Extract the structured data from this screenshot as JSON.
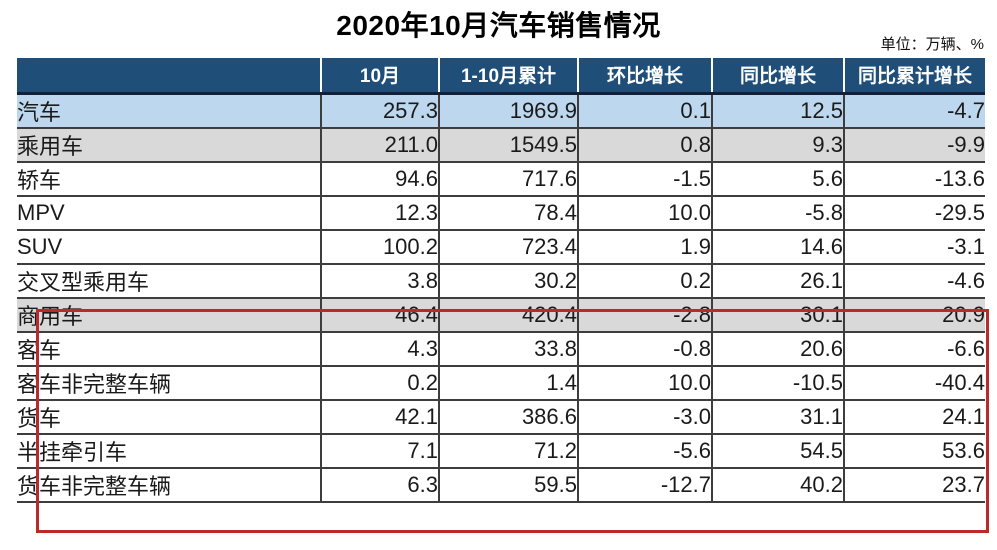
{
  "title": "2020年10月汽车销售情况",
  "unit_note": "单位：万辆、%",
  "chart_data": {
    "type": "table",
    "title": "2020年10月汽车销售情况",
    "unit": "万辆、%",
    "columns": [
      "",
      "10月",
      "1-10月累计",
      "环比增长",
      "同比增长",
      "同比累计增长"
    ],
    "rows": [
      {
        "label": "汽车",
        "indent": 0,
        "highlight": "blue",
        "values": [
          "257.3",
          "1969.9",
          "0.1",
          "12.5",
          "-4.7"
        ]
      },
      {
        "label": "乘用车",
        "indent": 1,
        "highlight": "gray",
        "values": [
          "211.0",
          "1549.5",
          "0.8",
          "9.3",
          "-9.9"
        ]
      },
      {
        "label": "轿车",
        "indent": 2,
        "highlight": "none",
        "values": [
          "94.6",
          "717.6",
          "-1.5",
          "5.6",
          "-13.6"
        ]
      },
      {
        "label": "MPV",
        "indent": 2,
        "highlight": "none",
        "values": [
          "12.3",
          "78.4",
          "10.0",
          "-5.8",
          "-29.5"
        ]
      },
      {
        "label": "SUV",
        "indent": 2,
        "highlight": "none",
        "values": [
          "100.2",
          "723.4",
          "1.9",
          "14.6",
          "-3.1"
        ]
      },
      {
        "label": "交叉型乘用车",
        "indent": 2,
        "highlight": "none",
        "values": [
          "3.8",
          "30.2",
          "0.2",
          "26.1",
          "-4.6"
        ]
      },
      {
        "label": "商用车",
        "indent": 1,
        "highlight": "gray",
        "values": [
          "46.4",
          "420.4",
          "-2.8",
          "30.1",
          "20.9"
        ]
      },
      {
        "label": "客车",
        "indent": 2,
        "highlight": "none",
        "values": [
          "4.3",
          "33.8",
          "-0.8",
          "20.6",
          "-6.6"
        ]
      },
      {
        "label": "客车非完整车辆",
        "indent": 3,
        "highlight": "none",
        "values": [
          "0.2",
          "1.4",
          "10.0",
          "-10.5",
          "-40.4"
        ]
      },
      {
        "label": "货车",
        "indent": 2,
        "highlight": "none",
        "values": [
          "42.1",
          "386.6",
          "-3.0",
          "31.1",
          "24.1"
        ]
      },
      {
        "label": "半挂牵引车",
        "indent": 3,
        "highlight": "none",
        "values": [
          "7.1",
          "71.2",
          "-5.6",
          "54.5",
          "53.6"
        ]
      },
      {
        "label": "货车非完整车辆",
        "indent": 3,
        "highlight": "none",
        "values": [
          "6.3",
          "59.5",
          "-12.7",
          "40.2",
          "23.7"
        ]
      }
    ],
    "annotation": "红色方框圈出商用车部分（商用车至货车非完整车辆共6行）"
  },
  "colors": {
    "header_bg": "#1f4e79",
    "header_text": "#ffffff",
    "row_highlight_blue": "#bdd7ee",
    "row_highlight_gray": "#d9d9d9",
    "grid_line": "#3d3d3d",
    "red_box": "#b92a2e"
  }
}
